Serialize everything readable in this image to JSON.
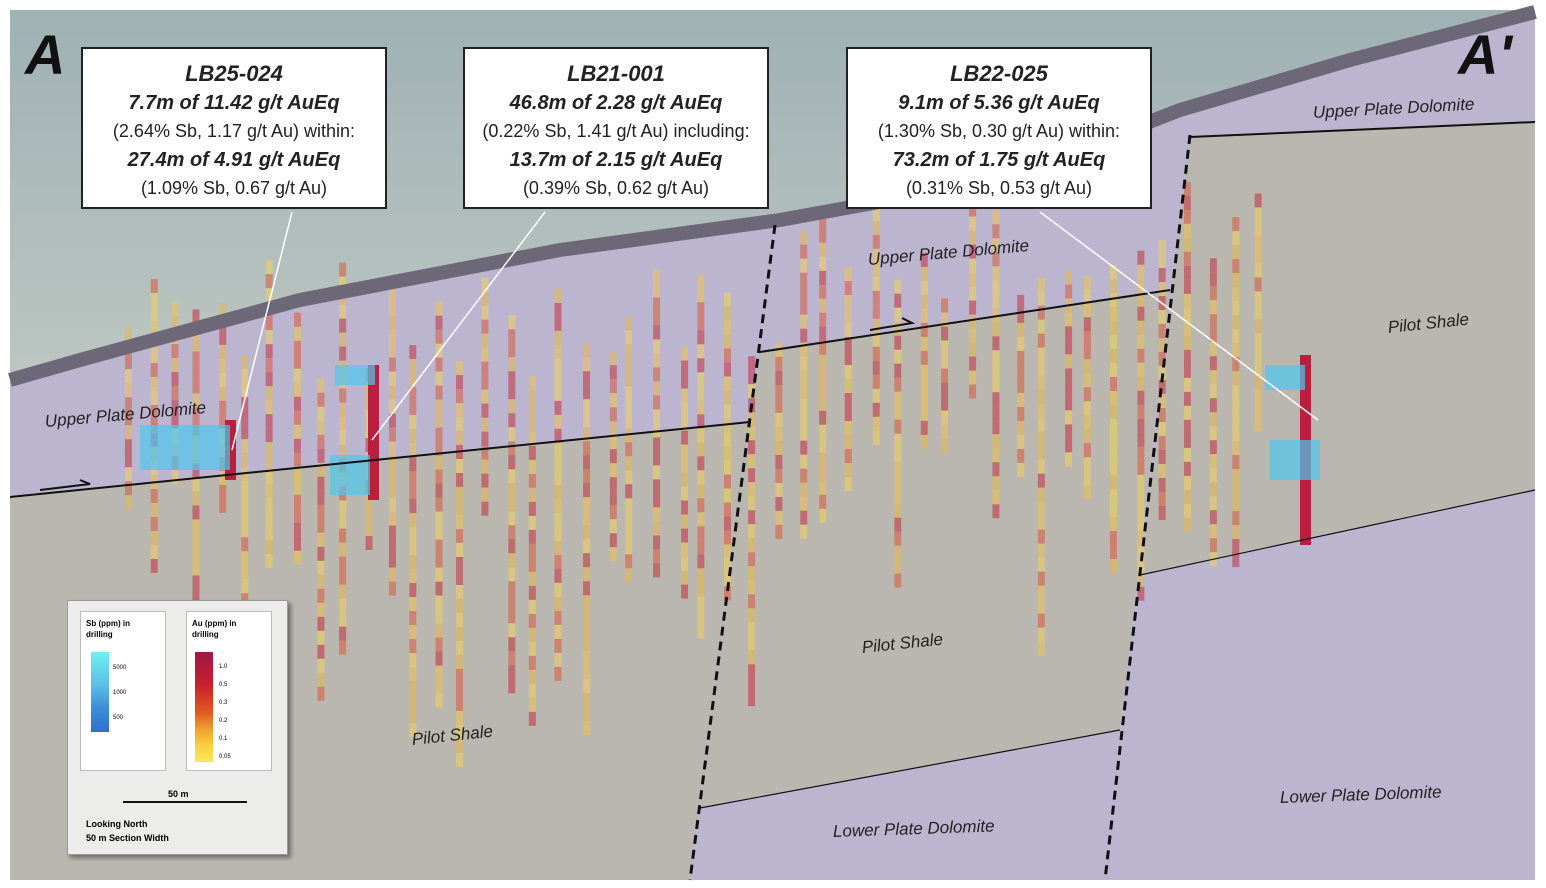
{
  "section_labels": {
    "start": "A",
    "end": "A'"
  },
  "callouts": [
    {
      "hole": "LB25-024",
      "lines": [
        "7.7m of 11.42 g/t AuEq",
        "(2.64% Sb, 1.17 g/t Au) within:",
        "27.4m of 4.91 g/t AuEq",
        "(1.09% Sb, 0.67 g/t Au)"
      ]
    },
    {
      "hole": "LB21-001",
      "lines": [
        "46.8m of 2.28 g/t AuEq",
        "(0.22% Sb, 1.41 g/t Au) including:",
        "13.7m of 2.15 g/t AuEq",
        "(0.39% Sb, 0.62 g/t Au)"
      ]
    },
    {
      "hole": "LB22-025",
      "lines": [
        "9.1m of 5.36 g/t AuEq",
        "(1.30% Sb, 0.30 g/t Au) within:",
        "73.2m of 1.75 g/t AuEq",
        "(0.31% Sb, 0.53 g/t Au)"
      ]
    }
  ],
  "units": [
    "Upper Plate Dolomite",
    "Upper Plate Dolomite",
    "Upper Plate Dolomite",
    "Pilot Shale",
    "Pilot Shale",
    "Pilot Shale",
    "Lower Plate Dolomite",
    "Lower Plate Dolomite"
  ],
  "legend": {
    "sb": {
      "title": "Sb (ppm) in drilling",
      "ticks": [
        "5000",
        "1000",
        "500"
      ]
    },
    "au": {
      "title": "Au (ppm) in drilling",
      "ticks": [
        "1.0",
        "0.5",
        "0.3",
        "0.2",
        "0.1",
        "0.05"
      ]
    },
    "scale_bar": "50 m",
    "notes": [
      "Looking North",
      "50 m Section Width"
    ]
  }
}
